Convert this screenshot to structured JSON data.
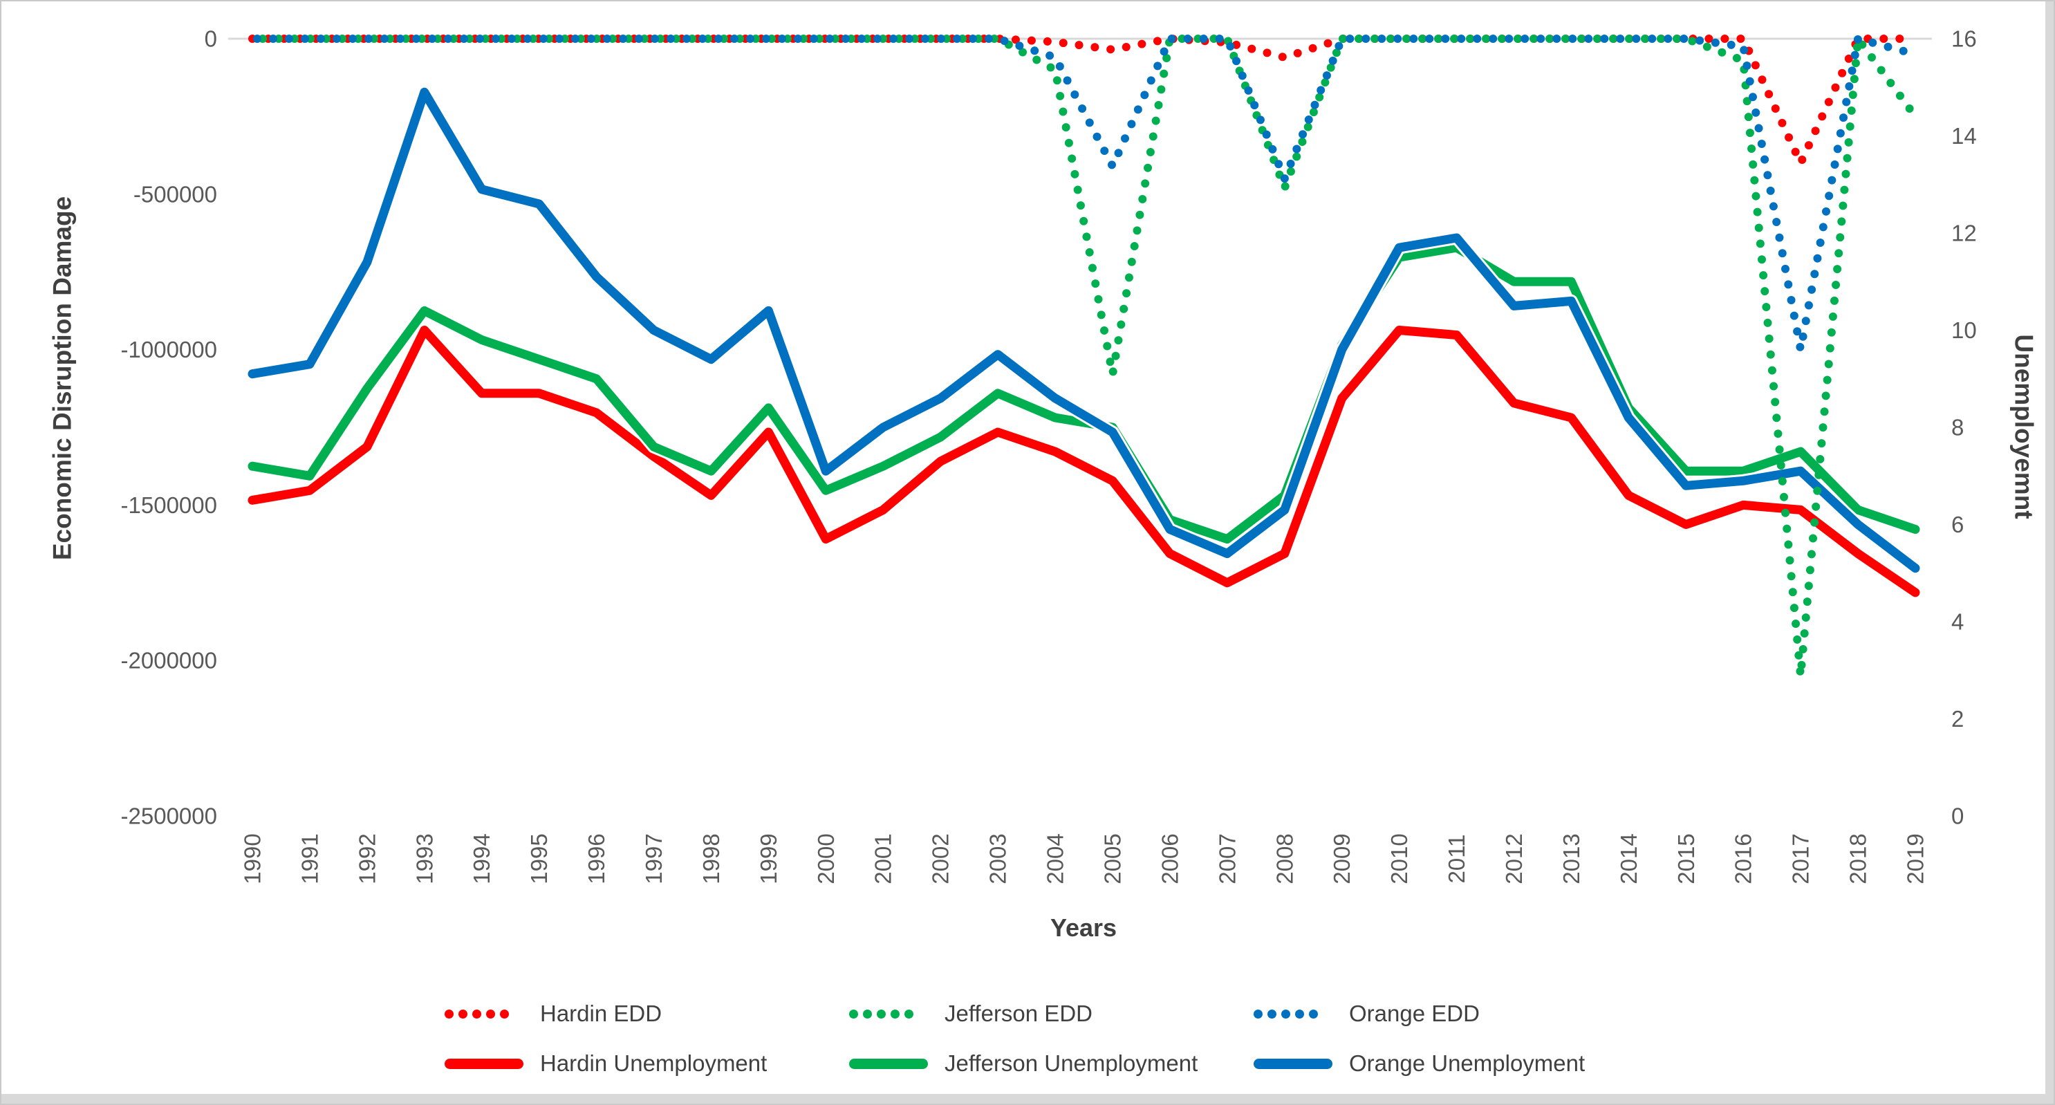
{
  "window": {
    "background": "#ffffff",
    "frame_border_color": "#c9c9c9",
    "edge_strip_color": "#d9d9d9"
  },
  "chart_data": {
    "type": "line",
    "x": [
      1990,
      1991,
      1992,
      1993,
      1994,
      1995,
      1996,
      1997,
      1998,
      1999,
      2000,
      2001,
      2002,
      2003,
      2004,
      2005,
      2006,
      2007,
      2008,
      2009,
      2010,
      2011,
      2012,
      2013,
      2014,
      2015,
      2016,
      2017,
      2018,
      2019
    ],
    "x_axis": {
      "title": "Years",
      "tick_labels": [
        "1990",
        "1991",
        "1992",
        "1993",
        "1994",
        "1995",
        "1996",
        "1997",
        "1998",
        "1999",
        "2000",
        "2001",
        "2002",
        "2003",
        "2004",
        "2005",
        "2006",
        "2007",
        "2008",
        "2009",
        "2010",
        "2011",
        "2012",
        "2013",
        "2014",
        "2015",
        "2016",
        "2017",
        "2018",
        "2019"
      ]
    },
    "left_axis": {
      "title": "Economic Disruption Damage",
      "min": -2500000,
      "max": 0,
      "ticks": [
        0,
        -500000,
        -1000000,
        -1500000,
        -2000000,
        -2500000
      ],
      "tick_labels": [
        "0",
        "-500000",
        "-1000000",
        "-1500000",
        "-2000000",
        "-2500000"
      ]
    },
    "right_axis": {
      "title": "Unemployemnt",
      "min": 0,
      "max": 16,
      "ticks": [
        16,
        14,
        12,
        10,
        8,
        6,
        4,
        2,
        0
      ],
      "tick_labels": [
        "16",
        "14",
        "12",
        "10",
        "8",
        "6",
        "4",
        "2",
        "0"
      ]
    },
    "gridline_color": "#d9d9d9",
    "legend_position": "bottom",
    "series": [
      {
        "name": "Hardin EDD",
        "axis": "left",
        "style": "dotted",
        "color": "#ff0000",
        "values": [
          0,
          0,
          0,
          0,
          0,
          0,
          0,
          0,
          0,
          0,
          0,
          0,
          0,
          0,
          -10000,
          -35000,
          0,
          -12000,
          -60000,
          0,
          0,
          0,
          0,
          0,
          0,
          0,
          0,
          -400000,
          0,
          0
        ]
      },
      {
        "name": "Jefferson EDD",
        "axis": "left",
        "style": "dotted",
        "color": "#00b050",
        "values": [
          0,
          0,
          0,
          0,
          0,
          0,
          0,
          0,
          0,
          0,
          0,
          0,
          0,
          0,
          -100000,
          -1080000,
          0,
          0,
          -480000,
          0,
          0,
          0,
          0,
          0,
          0,
          0,
          -70000,
          -2050000,
          0,
          -250000
        ]
      },
      {
        "name": "Orange EDD",
        "axis": "left",
        "style": "dotted",
        "color": "#0070c0",
        "values": [
          0,
          0,
          0,
          0,
          0,
          0,
          0,
          0,
          0,
          0,
          0,
          0,
          0,
          0,
          -60000,
          -410000,
          0,
          0,
          -450000,
          0,
          0,
          0,
          0,
          0,
          0,
          0,
          -25000,
          -1000000,
          0,
          -50000
        ]
      },
      {
        "name": "Hardin Unemployment",
        "axis": "right",
        "style": "solid",
        "color": "#ff0000",
        "values": [
          6.5,
          6.7,
          7.6,
          10.0,
          8.7,
          8.7,
          8.3,
          7.4,
          6.6,
          7.9,
          5.7,
          6.3,
          7.3,
          7.9,
          7.5,
          6.9,
          5.4,
          4.8,
          5.4,
          8.6,
          10.0,
          9.9,
          8.5,
          8.2,
          6.6,
          6.0,
          6.4,
          6.3,
          5.4,
          4.6
        ]
      },
      {
        "name": "Jefferson Unemployment",
        "axis": "right",
        "style": "solid",
        "color": "#00b050",
        "values": [
          7.2,
          7.0,
          8.8,
          10.4,
          9.8,
          9.4,
          9.0,
          7.6,
          7.1,
          8.4,
          6.7,
          7.2,
          7.8,
          8.7,
          8.2,
          8.0,
          6.1,
          5.7,
          6.6,
          9.7,
          11.5,
          11.7,
          11.0,
          11.0,
          8.4,
          7.1,
          7.1,
          7.5,
          6.3,
          5.9
        ]
      },
      {
        "name": "Orange Unemployment",
        "axis": "right",
        "style": "solid",
        "color": "#0070c0",
        "values": [
          9.1,
          9.3,
          11.4,
          14.9,
          12.9,
          12.6,
          11.1,
          10.0,
          9.4,
          10.4,
          7.1,
          8.0,
          8.6,
          9.5,
          8.6,
          7.9,
          5.9,
          5.4,
          6.3,
          9.6,
          11.7,
          11.9,
          10.5,
          10.6,
          8.2,
          6.8,
          6.9,
          7.1,
          6.0,
          5.1
        ]
      }
    ],
    "text_colors": {
      "tick": "#595959",
      "title": "#404040"
    }
  }
}
